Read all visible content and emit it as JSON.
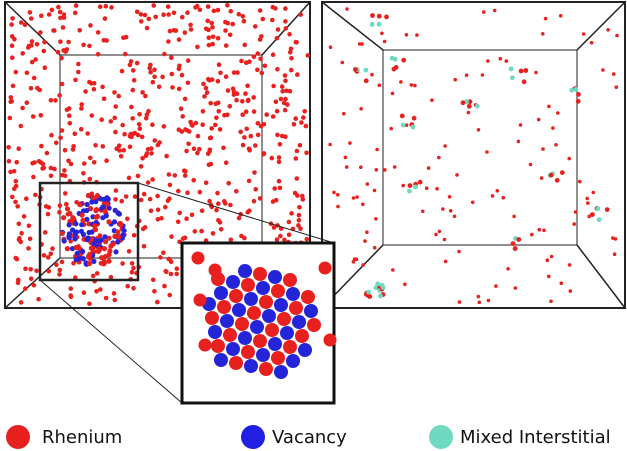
{
  "legend": [
    {
      "label": "Rhenium"
    },
    {
      "label": "Vacancy"
    },
    {
      "label": "Mixed Interstitial"
    }
  ]
}
